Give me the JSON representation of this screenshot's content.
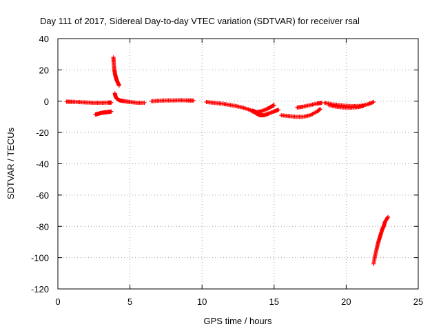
{
  "chart_data": {
    "type": "scatter",
    "title": "Day 111 of 2017, Sidereal Day-to-day VTEC variation (SDTVAR) for receiver rsal",
    "xlabel": "GPS time / hours",
    "ylabel": "SDTVAR / TECUs",
    "xlim": [
      0,
      25
    ],
    "ylim": [
      -120,
      40
    ],
    "xticks": [
      0,
      5,
      10,
      15,
      20,
      25
    ],
    "yticks": [
      -120,
      -100,
      -80,
      -60,
      -40,
      -20,
      0,
      20,
      40
    ],
    "grid": true,
    "marker": "+",
    "color": "#ff0000",
    "series": [
      {
        "segments": [
          [
            [
              0.6,
              -0.3
            ],
            [
              1.0,
              -0.4
            ],
            [
              1.5,
              -0.6
            ],
            [
              2.0,
              -0.8
            ],
            [
              2.5,
              -1.0
            ],
            [
              3.0,
              -1.0
            ],
            [
              3.5,
              -0.9
            ],
            [
              3.7,
              -0.9
            ]
          ],
          [
            [
              2.6,
              -8.5
            ],
            [
              2.8,
              -8.0
            ],
            [
              3.0,
              -7.5
            ],
            [
              3.2,
              -7.2
            ],
            [
              3.4,
              -7.0
            ],
            [
              3.6,
              -6.8
            ],
            [
              3.7,
              -6.6
            ]
          ],
          [
            [
              3.85,
              28
            ],
            [
              3.88,
              24
            ],
            [
              3.92,
              20
            ],
            [
              3.97,
              17
            ],
            [
              4.03,
              15
            ],
            [
              4.1,
              13
            ],
            [
              4.2,
              11
            ],
            [
              4.25,
              10
            ]
          ],
          [
            [
              3.95,
              5
            ],
            [
              4.0,
              3
            ],
            [
              4.1,
              1.5
            ],
            [
              4.3,
              0.5
            ],
            [
              4.6,
              0
            ],
            [
              5.0,
              -0.5
            ],
            [
              5.5,
              -1.0
            ],
            [
              6.0,
              -1.0
            ]
          ],
          [
            [
              6.5,
              0
            ],
            [
              7.0,
              0.3
            ],
            [
              7.5,
              0.5
            ],
            [
              8.0,
              0.5
            ],
            [
              8.5,
              0.6
            ],
            [
              9.0,
              0.5
            ],
            [
              9.4,
              0.4
            ]
          ],
          [
            [
              10.3,
              -0.5
            ],
            [
              10.8,
              -1.0
            ],
            [
              11.3,
              -1.5
            ],
            [
              11.8,
              -2.2
            ],
            [
              12.3,
              -3.0
            ],
            [
              12.8,
              -4.0
            ],
            [
              13.3,
              -5.5
            ],
            [
              13.7,
              -7.5
            ],
            [
              14.0,
              -9.0
            ],
            [
              14.3,
              -9.0
            ],
            [
              14.6,
              -8.0
            ],
            [
              15.0,
              -6.5
            ],
            [
              15.3,
              -5.5
            ]
          ],
          [
            [
              13.5,
              -6.0
            ],
            [
              13.8,
              -7.0
            ],
            [
              14.1,
              -6.5
            ],
            [
              14.5,
              -5.0
            ],
            [
              14.8,
              -3.5
            ],
            [
              15.0,
              -2.5
            ]
          ],
          [
            [
              15.5,
              -9.0
            ],
            [
              16.0,
              -9.5
            ],
            [
              16.5,
              -10.0
            ],
            [
              17.0,
              -10.0
            ],
            [
              17.5,
              -9.0
            ],
            [
              18.0,
              -6.5
            ],
            [
              18.2,
              -5.0
            ]
          ],
          [
            [
              16.6,
              -4.0
            ],
            [
              17.0,
              -3.5
            ],
            [
              17.5,
              -2.5
            ],
            [
              18.0,
              -1.5
            ],
            [
              18.3,
              -1.0
            ]
          ],
          [
            [
              18.5,
              -1.0
            ],
            [
              19.0,
              -2.0
            ],
            [
              19.5,
              -2.5
            ],
            [
              20.0,
              -3.0
            ],
            [
              20.5,
              -3.2
            ],
            [
              21.0,
              -3.0
            ],
            [
              21.5,
              -2.0
            ],
            [
              21.9,
              -0.5
            ]
          ],
          [
            [
              18.8,
              -2.5
            ],
            [
              19.3,
              -3.5
            ],
            [
              19.8,
              -4.0
            ],
            [
              20.3,
              -4.2
            ],
            [
              20.8,
              -3.8
            ],
            [
              21.2,
              -3.0
            ]
          ],
          [
            [
              21.9,
              -104
            ],
            [
              22.0,
              -99
            ],
            [
              22.1,
              -95
            ],
            [
              22.2,
              -91
            ],
            [
              22.3,
              -88
            ],
            [
              22.4,
              -85
            ],
            [
              22.5,
              -82
            ],
            [
              22.6,
              -80
            ],
            [
              22.7,
              -77
            ],
            [
              22.9,
              -74
            ]
          ]
        ]
      }
    ]
  }
}
